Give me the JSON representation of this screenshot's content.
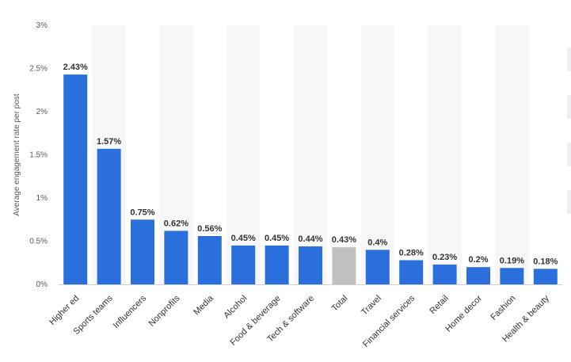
{
  "chart_data": {
    "type": "bar",
    "ylabel": "Average engagement rate per post",
    "ylim": [
      0,
      3
    ],
    "yticks": [
      0,
      0.5,
      1,
      1.5,
      2,
      2.5,
      3
    ],
    "ytick_labels": [
      "0%",
      "0.5%",
      "1%",
      "1.5%",
      "2%",
      "2.5%",
      "3%"
    ],
    "grid": "alternating column shading",
    "legend": "none",
    "categories": [
      "Higher ed",
      "Sports teams",
      "Influencers",
      "Nonprofits",
      "Media",
      "Alcohol",
      "Food & beverage",
      "Tech & software",
      "Total",
      "Travel",
      "Financial services",
      "Retail",
      "Home decor",
      "Fashion",
      "Health & beauty"
    ],
    "values": [
      2.43,
      1.57,
      0.75,
      0.62,
      0.56,
      0.45,
      0.45,
      0.44,
      0.43,
      0.4,
      0.28,
      0.23,
      0.2,
      0.19,
      0.18
    ],
    "data_labels": [
      "2.43%",
      "1.57%",
      "0.75%",
      "0.62%",
      "0.56%",
      "0.45%",
      "0.45%",
      "0.44%",
      "0.43%",
      "0.4%",
      "0.28%",
      "0.23%",
      "0.2%",
      "0.19%",
      "0.18%"
    ],
    "highlight_category": "Total",
    "colors": {
      "bar": "#2b6fdc",
      "highlight": "#c0c0c0",
      "shade": "#f7f7f9"
    }
  }
}
